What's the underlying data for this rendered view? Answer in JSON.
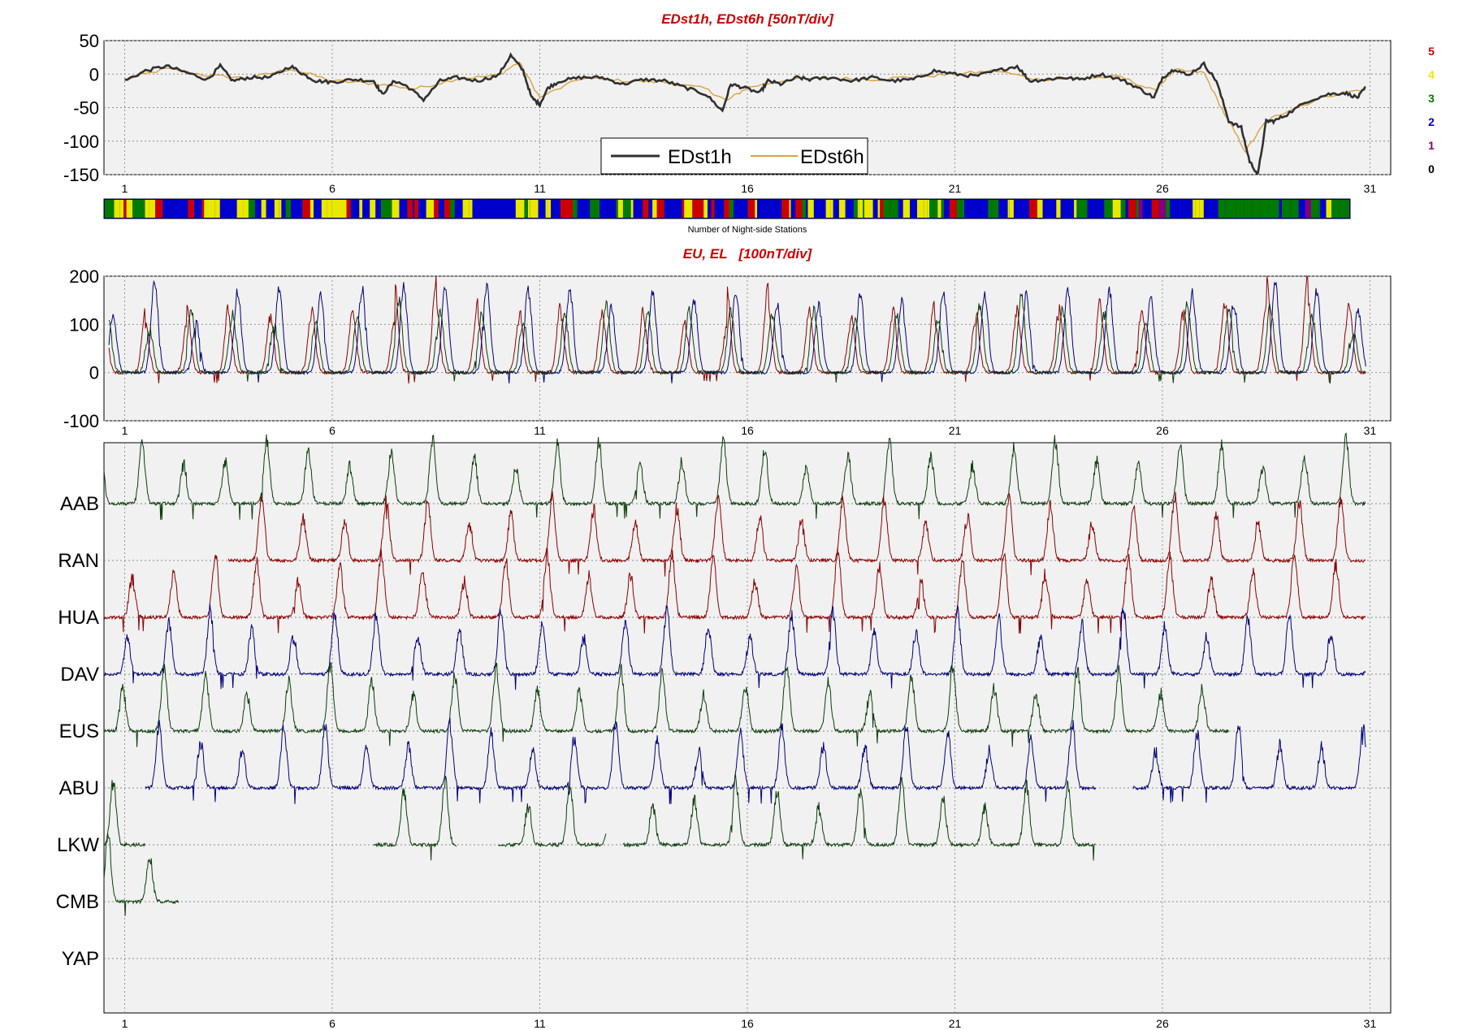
{
  "chart_data": [
    {
      "type": "line",
      "title": "EDst1h, EDst6h [50nT/div]",
      "x_ticks": [
        "1",
        "6",
        "11",
        "16",
        "21",
        "26",
        "31"
      ],
      "xlim": [
        0.5,
        31.5
      ],
      "ylim": [
        -150,
        50
      ],
      "y_ticks": [
        "50",
        "0",
        "-50",
        "-100",
        "-150"
      ],
      "grid": true,
      "legend": {
        "placement": "bottom-center",
        "entries": [
          "EDst1h",
          "EDst6h"
        ]
      },
      "series": [
        {
          "name": "EDst1h",
          "color": "#303030",
          "x": [
            1,
            1.5,
            2,
            2.5,
            3,
            3.3,
            3.6,
            4,
            4.5,
            5,
            5.3,
            5.6,
            6,
            6.5,
            7,
            7.2,
            7.5,
            7.8,
            8.2,
            8.6,
            9,
            9.5,
            10,
            10.3,
            10.6,
            10.8,
            11.0,
            11.2,
            11.5,
            12,
            12.5,
            13,
            13.5,
            14,
            14.5,
            15,
            15.4,
            15.6,
            15.9,
            16.3,
            16.5,
            16.8,
            17.2,
            17.5,
            18,
            18.5,
            19,
            19.5,
            20,
            20.5,
            21,
            21.5,
            22,
            22.5,
            22.8,
            23.2,
            23.6,
            24,
            24.5,
            25,
            25.4,
            25.8,
            26.0,
            26.3,
            26.6,
            27,
            27.3,
            27.6,
            27.9,
            28.1,
            28.3,
            28.5,
            28.7,
            29,
            29.5,
            30,
            30.4,
            30.7,
            30.9
          ],
          "y": [
            -10,
            5,
            12,
            2,
            -8,
            12,
            -10,
            -5,
            -5,
            12,
            0,
            -10,
            -12,
            -8,
            -10,
            -30,
            -10,
            -18,
            -38,
            -10,
            -5,
            -10,
            -2,
            28,
            5,
            -35,
            -45,
            -20,
            -10,
            -5,
            -5,
            -15,
            -8,
            -10,
            -20,
            -30,
            -55,
            -15,
            -20,
            -28,
            -10,
            -15,
            -5,
            -8,
            -5,
            -10,
            -5,
            -10,
            -8,
            5,
            0,
            -3,
            5,
            12,
            -10,
            -8,
            -5,
            -8,
            0,
            -8,
            -20,
            -35,
            -5,
            8,
            -2,
            15,
            -10,
            -70,
            -80,
            -130,
            -150,
            -70,
            -70,
            -60,
            -40,
            -30,
            -28,
            -35,
            -20
          ]
        },
        {
          "name": "EDst6h",
          "color": "#d9a340",
          "x": [
            1,
            2,
            3,
            4,
            5,
            6,
            7,
            8,
            9,
            10,
            10.5,
            11,
            12,
            13,
            14,
            15,
            15.5,
            16,
            17,
            18,
            19,
            20,
            21,
            22,
            23,
            24,
            25,
            25.8,
            26.3,
            27,
            27.5,
            28,
            28.5,
            29,
            30,
            30.9
          ],
          "y": [
            -8,
            8,
            -2,
            -6,
            8,
            -10,
            -14,
            -22,
            -7,
            -2,
            18,
            -35,
            -6,
            -10,
            -12,
            -22,
            -40,
            -20,
            -8,
            -6,
            -8,
            -4,
            0,
            5,
            -8,
            -6,
            -4,
            -25,
            6,
            2,
            -60,
            -115,
            -70,
            -55,
            -32,
            -22
          ]
        }
      ],
      "color_bar": {
        "label": "Number of Night-side Stations",
        "levels": [
          {
            "value": "5",
            "color": "#cc0000"
          },
          {
            "value": "4",
            "color": "#e8e800"
          },
          {
            "value": "3",
            "color": "#007a00"
          },
          {
            "value": "2",
            "color": "#0000cc"
          },
          {
            "value": "1",
            "color": "#800080"
          },
          {
            "value": "0",
            "color": "#000000"
          }
        ]
      }
    },
    {
      "type": "line",
      "title": "EU, EL   [100nT/div]",
      "x_ticks": [
        "1",
        "6",
        "11",
        "16",
        "21",
        "26",
        "31"
      ],
      "xlim": [
        0.5,
        31.5
      ],
      "ylim": [
        -100,
        200
      ],
      "y_ticks": [
        "200",
        "100",
        "0",
        "-100"
      ],
      "grid": true,
      "series_colors": [
        "#8b0000",
        "#00007a",
        "#0b3d0b"
      ],
      "daily_peak_nT": {
        "color_0": [
          130,
          100,
          135,
          110,
          120,
          140,
          110,
          190,
          145,
          110,
          140,
          120,
          130,
          105,
          90,
          180,
          135,
          115,
          120,
          140,
          110,
          130,
          120,
          150,
          130,
          120,
          140,
          145,
          200,
          150,
          140
        ],
        "color_1": [
          120,
          190,
          100,
          170,
          175,
          160,
          175,
          180,
          175,
          180,
          170,
          175,
          140,
          165,
          145,
          165,
          140,
          140,
          165,
          145,
          170,
          165,
          160,
          170,
          170,
          150,
          165,
          145,
          185,
          170,
          130
        ],
        "color_2": [
          110,
          90,
          130,
          120,
          100,
          110,
          120,
          150,
          120,
          120,
          110,
          120,
          140,
          120,
          130,
          130,
          120,
          130,
          110,
          120,
          110,
          140,
          160,
          130,
          120,
          110,
          140,
          130,
          140,
          120,
          80
        ]
      }
    },
    {
      "type": "line",
      "title": "",
      "x_ticks": [
        "1",
        "6",
        "11",
        "16",
        "21",
        "26",
        "31"
      ],
      "xlim": [
        0.5,
        31.5
      ],
      "stations": [
        {
          "code": "AAB",
          "color": "#0b3d0b",
          "coverage": [
            [
              0.5,
              30.9
            ]
          ]
        },
        {
          "code": "RAN",
          "color": "#8b0000",
          "coverage": [
            [
              3.5,
              30.9
            ]
          ]
        },
        {
          "code": "HUA",
          "color": "#8b0000",
          "coverage": [
            [
              0.5,
              30.9
            ]
          ]
        },
        {
          "code": "DAV",
          "color": "#00007a",
          "coverage": [
            [
              0.5,
              30.9
            ]
          ]
        },
        {
          "code": "EUS",
          "color": "#0b3d0b",
          "coverage": [
            [
              0.5,
              27.6
            ]
          ]
        },
        {
          "code": "ABU",
          "color": "#00007a",
          "coverage": [
            [
              1.5,
              24.4
            ],
            [
              25.3,
              30.9
            ]
          ]
        },
        {
          "code": "LKW",
          "color": "#0b3d0b",
          "coverage": [
            [
              0.5,
              1.5
            ],
            [
              7.0,
              9.0
            ],
            [
              10.0,
              12.6
            ],
            [
              13.0,
              24.4
            ]
          ]
        },
        {
          "code": "CMB",
          "color": "#0b3d0b",
          "coverage": [
            [
              0.5,
              2.3
            ]
          ]
        },
        {
          "code": "YAP",
          "color": "#00007a",
          "coverage": []
        }
      ]
    }
  ]
}
